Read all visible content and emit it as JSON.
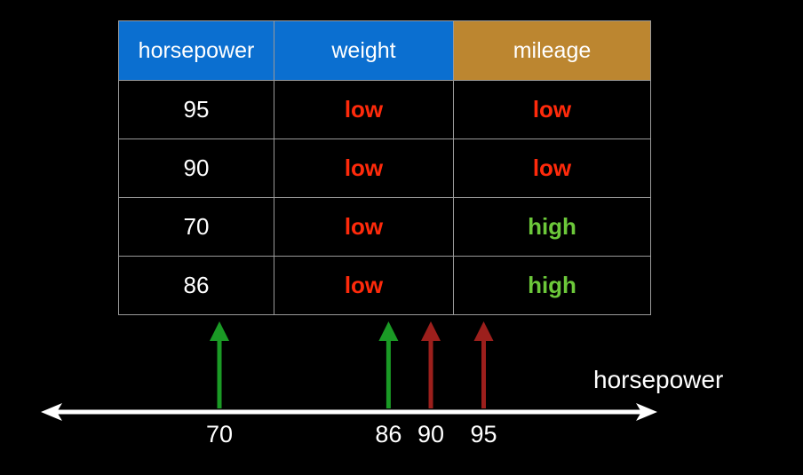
{
  "table": {
    "headers": [
      {
        "label": "horsepower",
        "color": "#0b6fd0"
      },
      {
        "label": "weight",
        "color": "#0b6fd0"
      },
      {
        "label": "mileage",
        "color": "#bc8630"
      }
    ],
    "rows": [
      {
        "horsepower": "95",
        "weight": "low",
        "mileage": "low"
      },
      {
        "horsepower": "90",
        "weight": "low",
        "mileage": "low"
      },
      {
        "horsepower": "70",
        "weight": "low",
        "mileage": "high"
      },
      {
        "horsepower": "86",
        "weight": "low",
        "mileage": "high"
      }
    ],
    "label_colors": {
      "low": "#ff2a0b",
      "high": "#6cc83a"
    }
  },
  "axis": {
    "title": "horsepower",
    "color": "#ffffff",
    "points": [
      {
        "value": 70,
        "label": "70",
        "mileage": "high",
        "arrow_color": "#1a9a25"
      },
      {
        "value": 86,
        "label": "86",
        "mileage": "high",
        "arrow_color": "#1a9a25"
      },
      {
        "value": 90,
        "label": "90",
        "mileage": "low",
        "arrow_color": "#9c1f1c"
      },
      {
        "value": 95,
        "label": "95",
        "mileage": "low",
        "arrow_color": "#9c1f1c"
      }
    ]
  }
}
